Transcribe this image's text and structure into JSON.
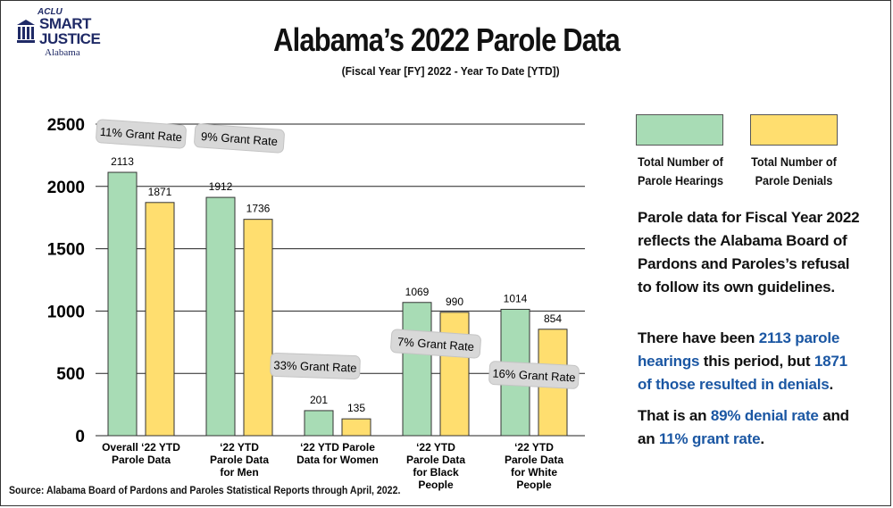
{
  "brand": {
    "org": "ACLU",
    "line1": "SMART",
    "line2": "JUSTICE",
    "state": "Alabama"
  },
  "colors": {
    "hearings": "#a8dcb5",
    "denials": "#ffde6f",
    "bar_border": "#333333",
    "highlight": "#1b57a3",
    "badge": "#d8d8d8"
  },
  "chart_data": {
    "type": "bar",
    "title": "Alabama’s 2022 Parole Data",
    "subtitle": "(Fiscal Year [FY] 2022 - Year To Date [YTD])",
    "categories": [
      [
        "Overall ‘22 YTD",
        "Parole Data"
      ],
      [
        "‘22 YTD",
        "Parole Data",
        "for Men"
      ],
      [
        "‘22 YTD  Parole",
        "Data for Women"
      ],
      [
        "‘22 YTD",
        "Parole Data",
        "for Black",
        "People"
      ],
      [
        "‘22 YTD",
        "Parole Data",
        "for White",
        "People"
      ]
    ],
    "series": [
      {
        "name": "Total Number of Parole Hearings",
        "values": [
          2113,
          1912,
          201,
          1069,
          1014
        ]
      },
      {
        "name": "Total Number of Parole Denials",
        "values": [
          1871,
          1736,
          135,
          990,
          854
        ]
      }
    ],
    "annotations": [
      "11% Grant Rate",
      "9% Grant Rate",
      "33% Grant Rate",
      "7% Grant Rate",
      "16% Grant Rate"
    ],
    "yticks": [
      0,
      500,
      1000,
      1500,
      2000,
      2500
    ],
    "ylim": [
      0,
      2500
    ],
    "grid": true,
    "legend_position": "top-right"
  },
  "legend": {
    "hearings": [
      "Total Number of",
      "Parole Hearings"
    ],
    "denials": [
      "Total Number of",
      "Parole Denials"
    ]
  },
  "side": {
    "p1": "Parole data for Fiscal Year 2022 reflects the Alabama Board of Pardons and Paroles’s refusal to follow its own guidelines.",
    "p2_a": "There have been ",
    "p2_b": "2113 parole hearings",
    "p2_c": " this period, but ",
    "p2_d": "1871 of those resulted in denials",
    "p2_e": ".",
    "p3_a": "That is an ",
    "p3_b": "89% denial rate",
    "p3_c": " and an ",
    "p3_d": "11% grant rate",
    "p3_e": "."
  },
  "source": "Source: Alabama Board of Pardons and Paroles Statistical Reports through April, 2022."
}
